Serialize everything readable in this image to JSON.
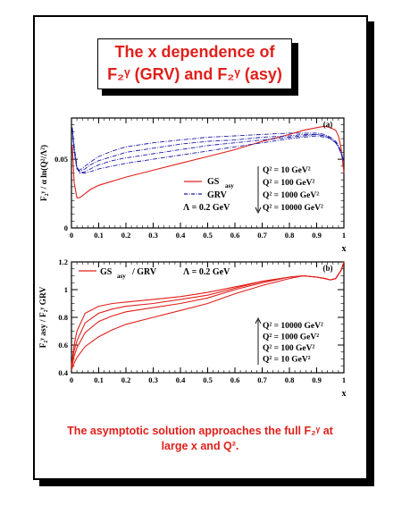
{
  "title_line1": "The x dependence of",
  "title_line2": "F₂ᵞ (GRV) and F₂ᵞ (asy)",
  "caption_line1": "The asymptotic solution approaches the full F₂ᵞ at",
  "caption_line2": "large x and Q².",
  "colors": {
    "gs": "#e0201b",
    "grv": "#1a1aa8",
    "title": "#e0201b"
  },
  "chart_data": [
    {
      "type": "line",
      "panel_label": "(a)",
      "ylabel": "F₂ᵞ / α ln(Q²/Λ²)",
      "xlabel": "x",
      "xlim": [
        0,
        1
      ],
      "ylim": [
        0,
        0.08
      ],
      "xticks": [
        "0",
        "0.1",
        "0.2",
        "0.3",
        "0.4",
        "0.5",
        "0.6",
        "0.7",
        "0.8",
        "0.9",
        "1"
      ],
      "yticks": [
        "0",
        "0.05"
      ],
      "legend": {
        "gs": "GS",
        "gs_sub": "asy",
        "grv": "GRV",
        "lambda": "Λ = 0.2 GeV"
      },
      "q2_labels": [
        "Q² =   10 GeV²",
        "Q² =  100 GeV²",
        "Q² = 1000 GeV²",
        "Q² = 10000 GeV²"
      ],
      "x": [
        0.003,
        0.01,
        0.02,
        0.03,
        0.05,
        0.07,
        0.1,
        0.15,
        0.2,
        0.3,
        0.4,
        0.5,
        0.6,
        0.7,
        0.8,
        0.85,
        0.9,
        0.93,
        0.95,
        0.97,
        0.98,
        0.99,
        1.0
      ],
      "series": [
        {
          "style": "solid",
          "values": [
            0.06,
            0.033,
            0.022,
            0.022,
            0.025,
            0.028,
            0.031,
            0.034,
            0.037,
            0.042,
            0.047,
            0.052,
            0.057,
            0.063,
            0.068,
            0.071,
            0.073,
            0.074,
            0.073,
            0.071,
            0.067,
            0.058,
            0.04
          ]
        },
        {
          "style": "dashed",
          "values": [
            0.073,
            0.06,
            0.045,
            0.04,
            0.04,
            0.041,
            0.043,
            0.045,
            0.047,
            0.05,
            0.053,
            0.056,
            0.059,
            0.062,
            0.065,
            0.066,
            0.067,
            0.066,
            0.065,
            0.062,
            0.059,
            0.054,
            0.048
          ]
        },
        {
          "style": "dashed",
          "values": [
            0.073,
            0.058,
            0.044,
            0.04,
            0.041,
            0.043,
            0.046,
            0.049,
            0.051,
            0.054,
            0.057,
            0.06,
            0.062,
            0.064,
            0.066,
            0.067,
            0.068,
            0.067,
            0.065,
            0.062,
            0.059,
            0.054,
            0.048
          ]
        },
        {
          "style": "dashed",
          "values": [
            0.072,
            0.057,
            0.043,
            0.041,
            0.043,
            0.046,
            0.049,
            0.052,
            0.055,
            0.058,
            0.061,
            0.063,
            0.064,
            0.066,
            0.067,
            0.068,
            0.068,
            0.067,
            0.066,
            0.063,
            0.06,
            0.055,
            0.048
          ]
        },
        {
          "style": "dashed",
          "values": [
            0.071,
            0.056,
            0.043,
            0.042,
            0.045,
            0.048,
            0.052,
            0.056,
            0.059,
            0.062,
            0.064,
            0.066,
            0.067,
            0.068,
            0.069,
            0.069,
            0.069,
            0.068,
            0.066,
            0.063,
            0.06,
            0.055,
            0.048
          ]
        }
      ]
    },
    {
      "type": "line",
      "panel_label": "(b)",
      "ylabel": "F₂ᵞ asy / F₂ᵞ GRV",
      "xlabel": "x",
      "xlim": [
        0,
        1
      ],
      "ylim": [
        0.4,
        1.2
      ],
      "xticks": [
        "0",
        "0.1",
        "0.2",
        "0.3",
        "0.4",
        "0.5",
        "0.6",
        "0.7",
        "0.8",
        "0.9",
        "1"
      ],
      "yticks": [
        "0.4",
        "0.6",
        "0.8",
        "1",
        "1.2"
      ],
      "legend": {
        "gs": "GS",
        "gs_sub": "asy",
        "grv": "/ GRV",
        "lambda": "Λ = 0.2 GeV"
      },
      "q2_labels": [
        "Q² = 10000 GeV²",
        "Q² = 1000 GeV²",
        "Q² =  100 GeV²",
        "Q² =   10 GeV²"
      ],
      "x": [
        0.0,
        0.01,
        0.02,
        0.05,
        0.1,
        0.15,
        0.2,
        0.3,
        0.4,
        0.5,
        0.6,
        0.7,
        0.8,
        0.85,
        0.9,
        0.93,
        0.95,
        0.97,
        0.99,
        1.0
      ],
      "series": [
        {
          "name": "Q² = 10000 GeV²",
          "values": [
            0.45,
            0.6,
            0.7,
            0.83,
            0.88,
            0.9,
            0.91,
            0.93,
            0.95,
            0.98,
            1.02,
            1.06,
            1.09,
            1.1,
            1.09,
            1.08,
            1.07,
            1.08,
            1.14,
            1.2
          ]
        },
        {
          "name": "Q² = 1000 GeV²",
          "values": [
            0.45,
            0.56,
            0.63,
            0.76,
            0.83,
            0.86,
            0.88,
            0.9,
            0.93,
            0.96,
            1.01,
            1.06,
            1.09,
            1.1,
            1.09,
            1.08,
            1.07,
            1.08,
            1.14,
            1.2
          ]
        },
        {
          "name": "Q² = 100 GeV²",
          "values": [
            0.43,
            0.52,
            0.58,
            0.69,
            0.77,
            0.81,
            0.84,
            0.87,
            0.9,
            0.94,
            1.0,
            1.05,
            1.09,
            1.1,
            1.09,
            1.08,
            1.07,
            1.08,
            1.14,
            1.2
          ]
        },
        {
          "name": "Q² = 10 GeV²",
          "values": [
            0.42,
            0.47,
            0.51,
            0.59,
            0.66,
            0.71,
            0.75,
            0.8,
            0.85,
            0.9,
            0.97,
            1.03,
            1.08,
            1.1,
            1.09,
            1.08,
            1.07,
            1.08,
            1.14,
            1.2
          ]
        }
      ]
    }
  ]
}
